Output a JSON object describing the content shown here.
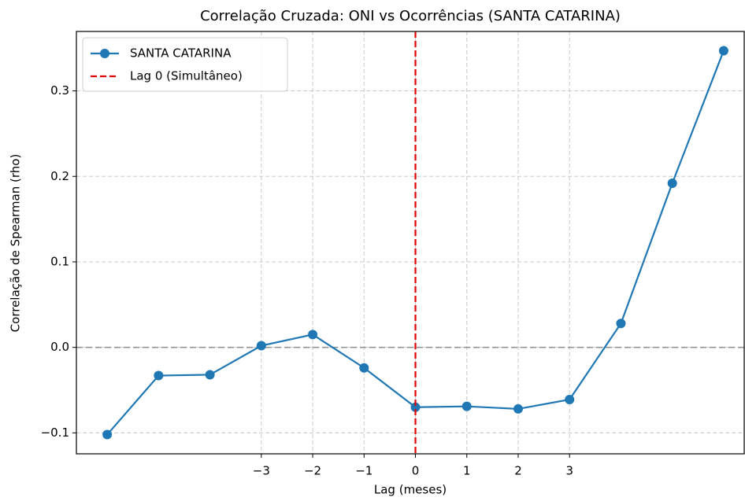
{
  "chart_data": {
    "type": "line",
    "title": "Correlação Cruzada: ONI vs Ocorrências (SANTA CATARINA)",
    "xlabel": "Lag (meses)",
    "ylabel": "Correlação de Spearman (rho)",
    "x": [
      -6,
      -5,
      -4,
      -3,
      -2,
      -1,
      0,
      1,
      2,
      3,
      4,
      5,
      6
    ],
    "series": [
      {
        "name": "SANTA CATARINA",
        "color": "#1f77b4",
        "values": [
          -0.102,
          -0.033,
          -0.032,
          0.002,
          0.015,
          -0.024,
          -0.07,
          -0.069,
          -0.072,
          -0.061,
          0.028,
          0.192,
          0.347
        ]
      }
    ],
    "vlines": [
      {
        "x": 0,
        "name": "Lag 0 (Simultâneo)",
        "color": "#e00000"
      }
    ],
    "hlines": [
      {
        "y": 0,
        "color": "#808080"
      }
    ],
    "xlim": [
      -6.6,
      6.4
    ],
    "ylim": [
      -0.1245,
      0.3695
    ],
    "xticks": [
      {
        "value": -3,
        "label": "−3"
      },
      {
        "value": -2,
        "label": "−2"
      },
      {
        "value": -1,
        "label": "−1"
      },
      0,
      1,
      2,
      3
    ],
    "yticks": [
      {
        "value": -0.1,
        "label": "−0.1"
      },
      {
        "value": 0,
        "label": "0.0"
      },
      0.1,
      0.2,
      0.3
    ],
    "grid": true,
    "legend": "upper left"
  }
}
